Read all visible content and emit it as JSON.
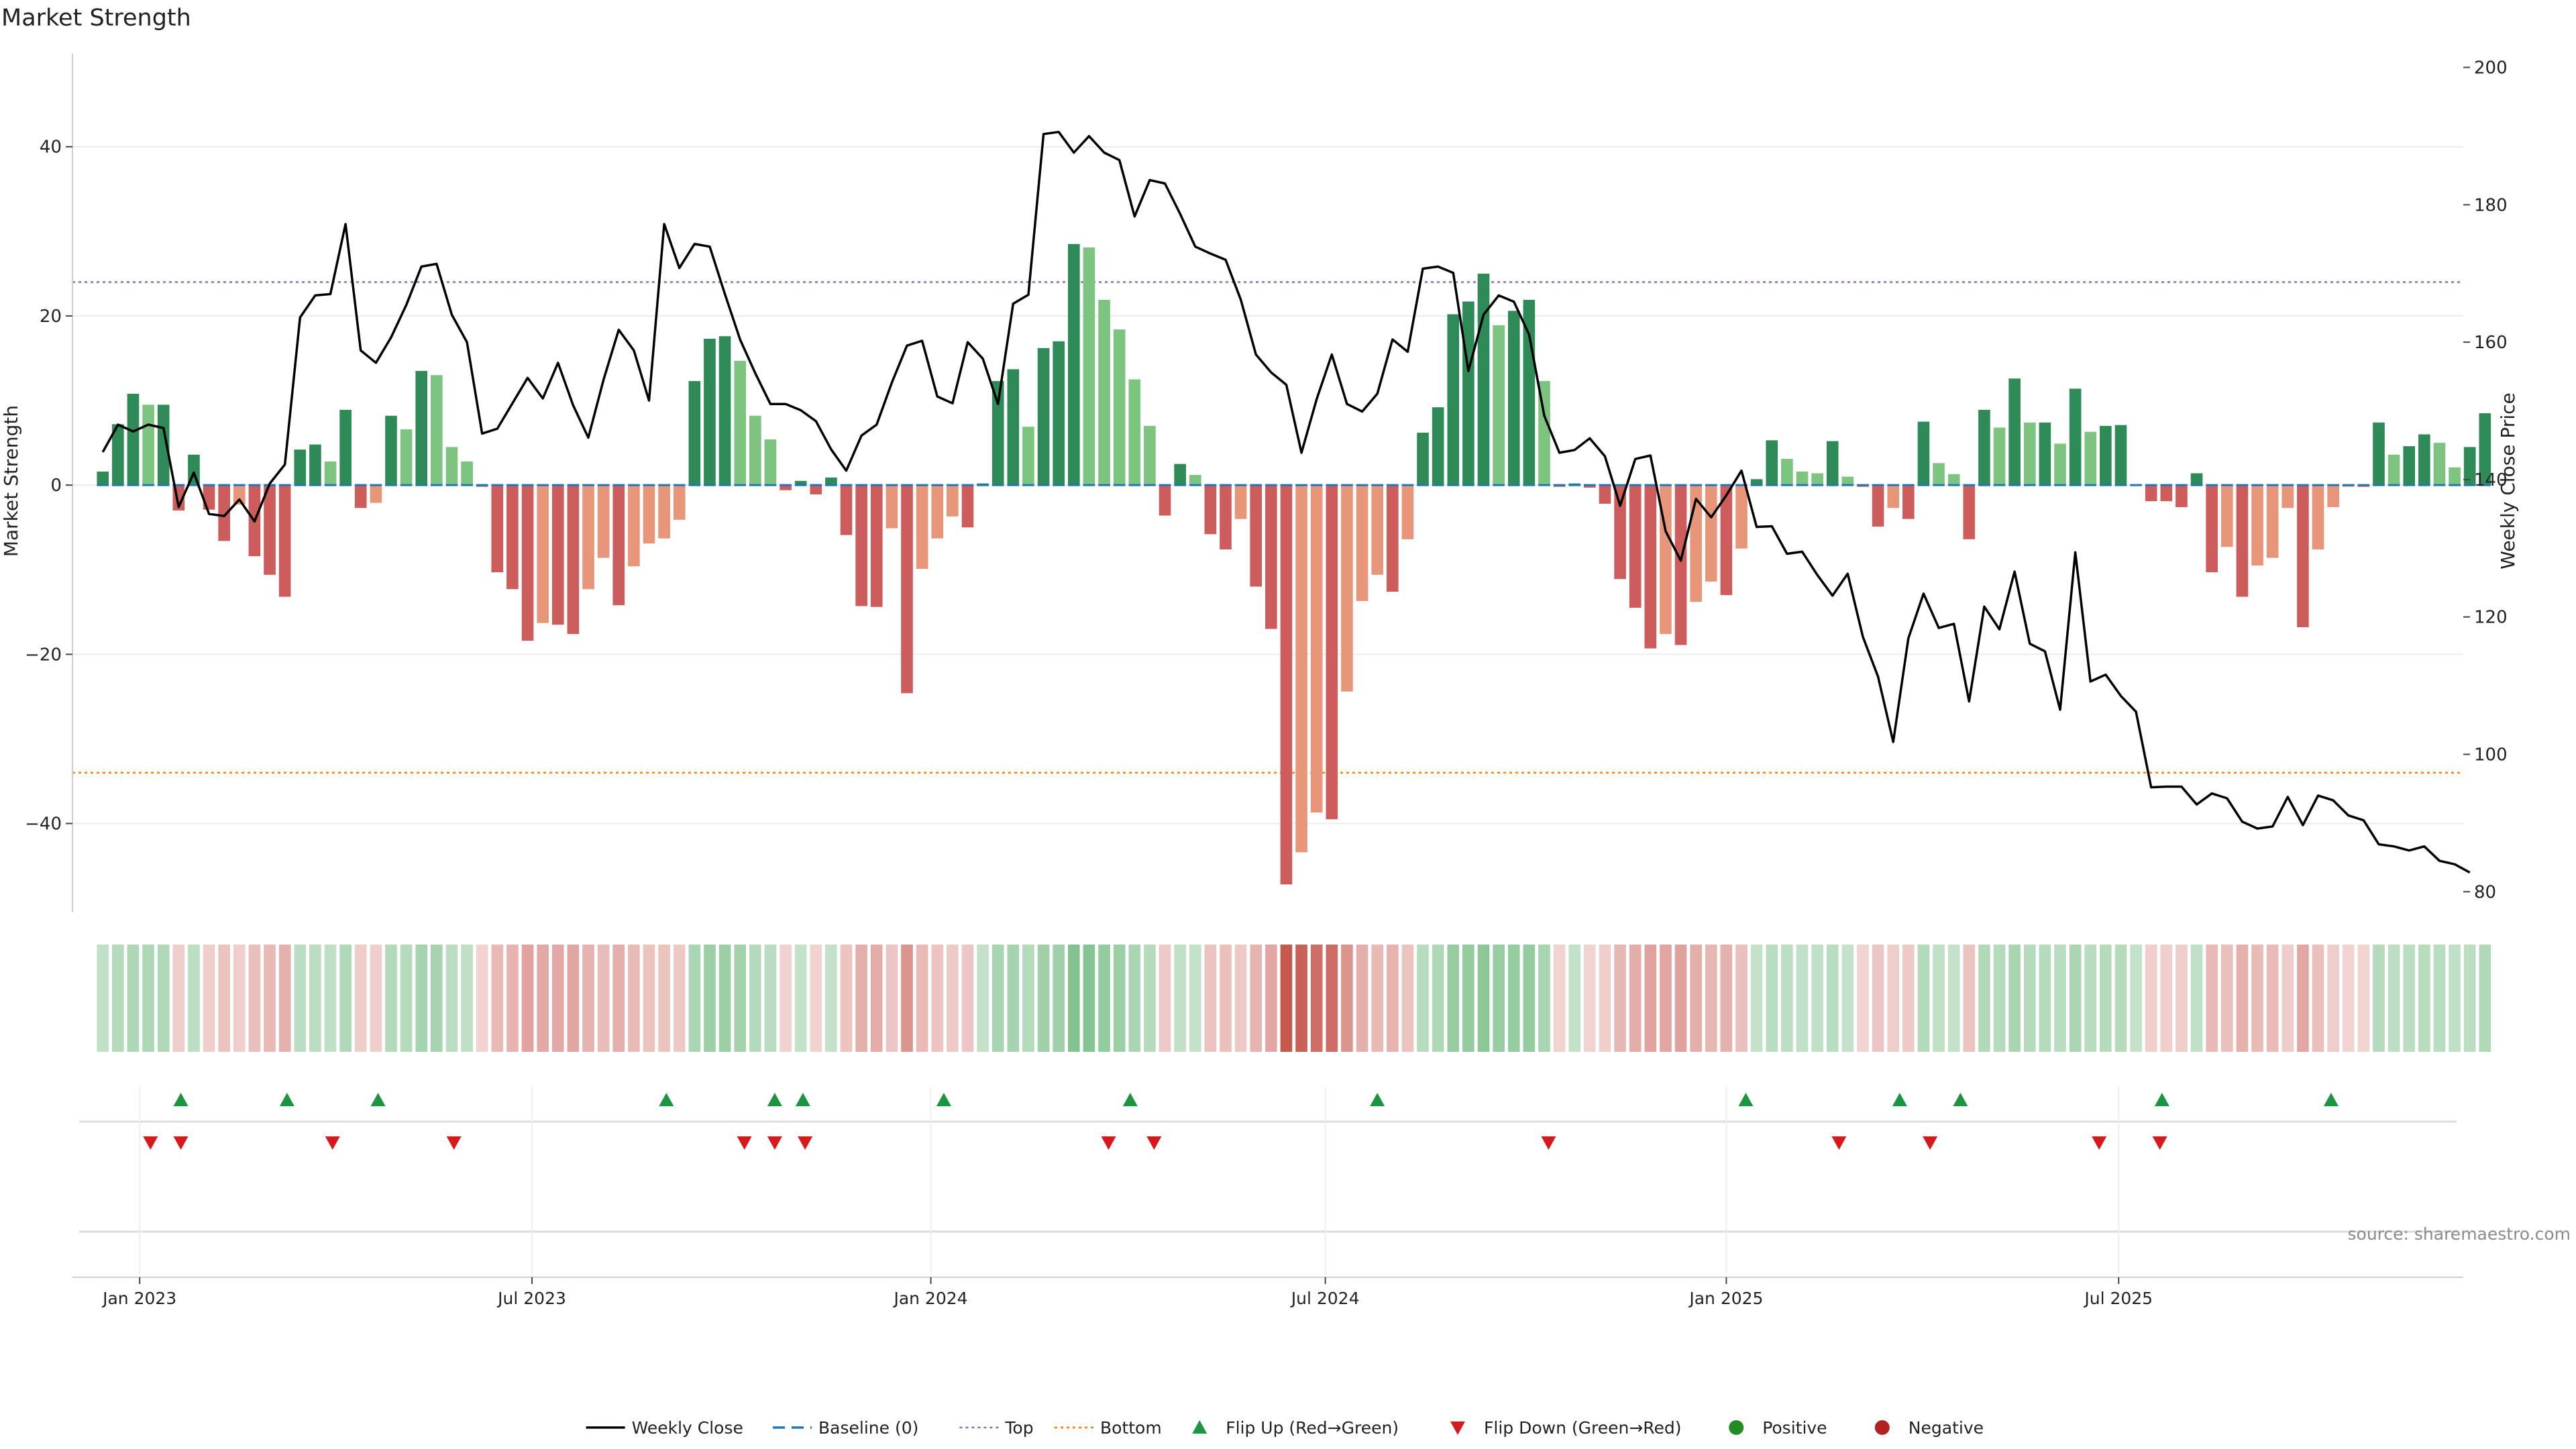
{
  "title": "Market Strength",
  "source": "source: sharemaestro.com",
  "colors": {
    "strong_green": "#2e8b57",
    "light_green": "#7cc47f",
    "strong_red": "#cd5c5c",
    "light_red": "#e8967a",
    "close_line": "#000000",
    "baseline": "#1f77b4",
    "top_line": "#9467bd",
    "bottom_line": "#ff7f0e",
    "flip_up": "#1a9641",
    "flip_down": "#d7191c",
    "positive": "#228b22",
    "negative": "#b22222"
  },
  "legend": [
    {
      "label": "Weekly Close",
      "kind": "line",
      "color": "#000000"
    },
    {
      "label": "Baseline (0)",
      "kind": "dash",
      "color": "#1f77b4"
    },
    {
      "label": "Top",
      "kind": "dot",
      "color": "#9467bd"
    },
    {
      "label": "Bottom",
      "kind": "dot",
      "color": "#ff7f0e"
    },
    {
      "label": "Flip Up (Red→Green)",
      "kind": "tri-up",
      "color": "#1a9641"
    },
    {
      "label": "Flip Down (Green→Red)",
      "kind": "tri-down",
      "color": "#d7191c"
    },
    {
      "label": "Positive",
      "kind": "circle",
      "color": "#228b22"
    },
    {
      "label": "Negative",
      "kind": "circle",
      "color": "#b22222"
    }
  ],
  "chart_data": {
    "type": "bar",
    "title": "Market Strength",
    "ylabel": "Market Strength",
    "y2label": "Weekly Close Price",
    "ylim": [
      -50.5,
      51
    ],
    "y2lim": [
      77,
      202
    ],
    "yticks": [
      40,
      20,
      0,
      -20,
      -40
    ],
    "y2ticks": [
      200,
      180,
      160,
      140,
      120,
      100,
      80
    ],
    "xlim_days": [
      -14,
      1089
    ],
    "xticks": [
      {
        "label": "Jan 2023",
        "day": 17
      },
      {
        "label": "Jul 2023",
        "day": 198
      },
      {
        "label": "Jan 2024",
        "day": 382
      },
      {
        "label": "Jul 2024",
        "day": 564
      },
      {
        "label": "Jan 2025",
        "day": 749
      },
      {
        "label": "Jul 2025",
        "day": 930
      }
    ],
    "start_date": "2022-12-01",
    "top_level": 24,
    "bottom_level": -34,
    "strength": [
      1.6,
      7.2,
      10.8,
      9.5,
      9.5,
      -3,
      3.6,
      -2.9,
      -6.6,
      -2.3,
      -8.4,
      -10.6,
      -13.2,
      4.2,
      4.8,
      2.8,
      8.9,
      -2.7,
      -2.1,
      8.2,
      6.6,
      13.5,
      13,
      4.5,
      2.8,
      -0.2,
      -10.3,
      -12.3,
      -18.4,
      -16.3,
      -16.5,
      -17.6,
      -12.3,
      -8.6,
      -14.2,
      -9.6,
      -6.9,
      -6.3,
      -4.1,
      12.3,
      17.3,
      17.6,
      14.7,
      8.2,
      5.4,
      -0.6,
      0.5,
      -1.1,
      0.9,
      -5.9,
      -14.3,
      -14.4,
      -5.1,
      -24.6,
      -9.9,
      -6.3,
      -3.7,
      -5,
      0.2,
      12.3,
      13.7,
      6.9,
      16.2,
      17,
      28.5,
      28.1,
      21.9,
      18.4,
      12.5,
      7,
      -3.6,
      2.5,
      1.2,
      -5.8,
      -7.6,
      -4,
      -12,
      -17,
      -47.2,
      -43.4,
      -38.7,
      -39.5,
      -24.4,
      -13.7,
      -10.6,
      -12.6,
      -6.4,
      6.2,
      9.2,
      20.2,
      21.7,
      25,
      18.9,
      20.6,
      21.9,
      12.3,
      -0.2,
      0.2,
      -0.3,
      -2.2,
      -11.1,
      -14.5,
      -19.3,
      -17.6,
      -18.9,
      -13.8,
      -11.4,
      -13,
      -7.5,
      0.7,
      5.3,
      3.1,
      1.6,
      1.4,
      5.2,
      1,
      -0.2,
      -4.9,
      -2.7,
      -4,
      7.5,
      2.6,
      1.3,
      -6.4,
      8.9,
      6.8,
      12.6,
      7.4,
      7.4,
      4.9,
      11.4,
      6.3,
      7,
      7.1,
      0.1,
      -1.9,
      -1.9,
      -2.6,
      1.4,
      -10.3,
      -7.3,
      -13.2,
      -9.5,
      -8.6,
      -2.7,
      -16.8,
      -7.6,
      -2.6,
      -0.2,
      -0.2,
      7.4,
      3.6,
      4.6,
      6,
      5,
      2.1,
      4.5,
      8.5
    ],
    "weekly_close": [
      144,
      148,
      147,
      148,
      147.5,
      136,
      141,
      135,
      134.7,
      137.1,
      133.9,
      139.4,
      142.2,
      163.6,
      166.8,
      167,
      177.2,
      158.8,
      157,
      160.7,
      165.4,
      171,
      171.4,
      164,
      160,
      146.7,
      147.4,
      151.1,
      154.8,
      151.8,
      157,
      150.8,
      146.1,
      154.5,
      161.8,
      158.8,
      151.5,
      177.2,
      170.8,
      174.3,
      173.9,
      167,
      160.4,
      155.5,
      151,
      151,
      150.1,
      148.5,
      144.4,
      141.3,
      146.4,
      148,
      154.1,
      159.5,
      160.2,
      152.1,
      151.1,
      160,
      157.6,
      151,
      165.6,
      166.9,
      190.3,
      190.6,
      187.6,
      190,
      187.6,
      186.5,
      178.3,
      183.6,
      183.1,
      178.7,
      173.9,
      172.9,
      172,
      166.2,
      158.2,
      155.6,
      153.8,
      143.9,
      151.7,
      158.2,
      151,
      149.9,
      152.5,
      160.4,
      158.6,
      170.7,
      171,
      170.1,
      155.8,
      164,
      166.8,
      165.9,
      161.1,
      149.3,
      143.9,
      144.3,
      146,
      143.4,
      136.2,
      143,
      143.5,
      132.5,
      128.2,
      137.2,
      134.5,
      137.7,
      141.3,
      133.1,
      133.2,
      129.2,
      129.5,
      126.1,
      123.1,
      126.3,
      117.1,
      111.3,
      101.8,
      116.9,
      123.4,
      118.4,
      119,
      107.7,
      121.5,
      118.2,
      126.6,
      116.1,
      115,
      106.5,
      129.4,
      110.6,
      111.6,
      108.5,
      106.2,
      95.2,
      95.3,
      95.3,
      92.7,
      94.3,
      93.6,
      90.2,
      89.2,
      89.5,
      93.8,
      89.7,
      94,
      93.3,
      91.1,
      90.4,
      86.9,
      86.6,
      86,
      86.6,
      84.5,
      84,
      82.8
    ],
    "flip_up_days": [
      36,
      85,
      127,
      260,
      310,
      323,
      388,
      474,
      588,
      758,
      829,
      857,
      950,
      1028
    ],
    "flip_down_days": [
      22,
      36,
      106,
      162,
      296,
      310,
      324,
      464,
      485,
      667,
      801,
      843,
      921,
      949
    ]
  }
}
